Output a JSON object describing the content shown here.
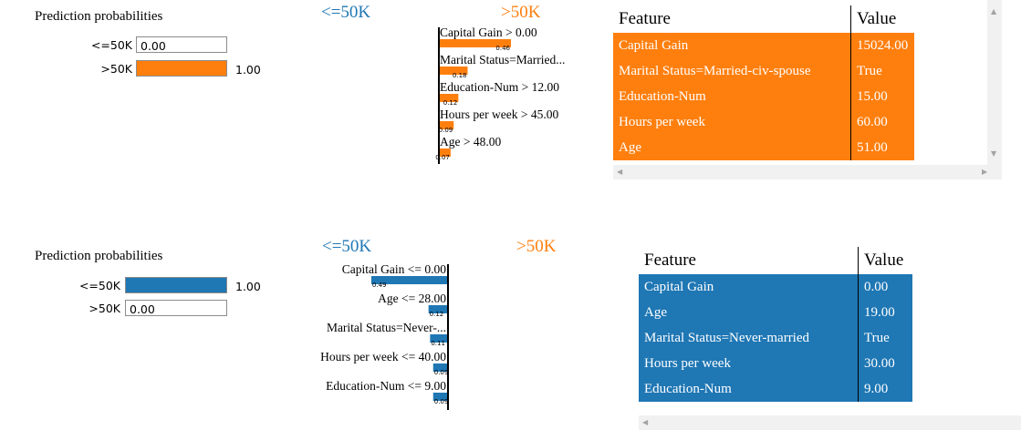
{
  "colors": {
    "pos": "#ff7f0e",
    "neg": "#1f77b4",
    "pos_text": "#ff7f0e",
    "neg_text": "#1f77b4"
  },
  "chart_data": [
    {
      "type": "bar",
      "title": "Prediction probabilities",
      "categories": [
        "<=50K",
        ">50K"
      ],
      "values": [
        0.0,
        1.0
      ],
      "value_labels": [
        "0.00",
        "1.00"
      ],
      "xlim": [
        0,
        1
      ]
    },
    {
      "type": "bar",
      "left_label": "<=50K",
      "right_label": ">50K",
      "categories": [
        "Capital Gain > 0.00",
        "Marital Status=Married...",
        "Education-Num > 12.00",
        "Hours per week > 45.00",
        "Age > 48.00"
      ],
      "values": [
        0.46,
        0.18,
        0.12,
        0.09,
        0.07
      ],
      "value_labels": [
        "0.46",
        "0.18",
        "0.12",
        "0.09",
        "0.07"
      ],
      "direction": "right"
    },
    {
      "type": "table",
      "columns": [
        "Feature",
        "Value"
      ],
      "rows": [
        [
          "Capital Gain",
          "15024.00"
        ],
        [
          "Marital Status=Married-civ-spouse",
          "True"
        ],
        [
          "Education-Num",
          "15.00"
        ],
        [
          "Hours per week",
          "60.00"
        ],
        [
          "Age",
          "51.00"
        ]
      ]
    },
    {
      "type": "bar",
      "title": "Prediction probabilities",
      "categories": [
        "<=50K",
        ">50K"
      ],
      "values": [
        1.0,
        0.0
      ],
      "value_labels": [
        "1.00",
        "0.00"
      ],
      "xlim": [
        0,
        1
      ]
    },
    {
      "type": "bar",
      "left_label": "<=50K",
      "right_label": ">50K",
      "categories": [
        "Capital Gain <= 0.00",
        "Age <= 28.00",
        "Marital Status=Never-...",
        "Hours per week <= 40.00",
        "Education-Num <= 9.00"
      ],
      "values": [
        0.49,
        0.12,
        0.11,
        0.09,
        0.09
      ],
      "value_labels": [
        "0.49",
        "0.12",
        "0.11",
        "0.09",
        "0.09"
      ],
      "direction": "left"
    },
    {
      "type": "table",
      "columns": [
        "Feature",
        "Value"
      ],
      "rows": [
        [
          "Capital Gain",
          "0.00"
        ],
        [
          "Age",
          "19.00"
        ],
        [
          "Marital Status=Never-married",
          "True"
        ],
        [
          "Hours per week",
          "30.00"
        ],
        [
          "Education-Num",
          "9.00"
        ]
      ]
    }
  ]
}
